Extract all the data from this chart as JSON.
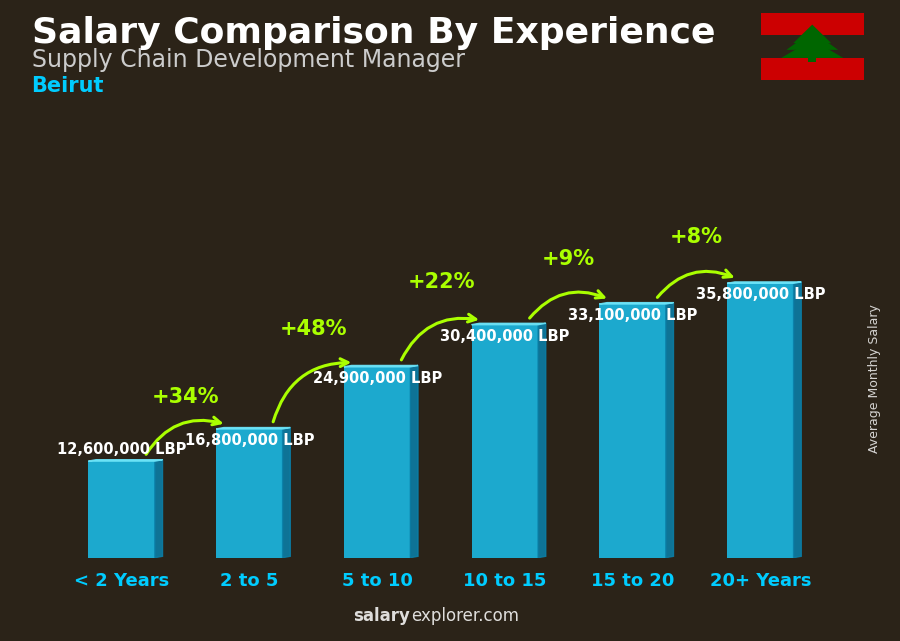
{
  "title": "Salary Comparison By Experience",
  "subtitle": "Supply Chain Development Manager",
  "city": "Beirut",
  "ylabel": "Average Monthly Salary",
  "categories": [
    "< 2 Years",
    "2 to 5",
    "5 to 10",
    "10 to 15",
    "15 to 20",
    "20+ Years"
  ],
  "values": [
    12600000,
    16800000,
    24900000,
    30400000,
    33100000,
    35800000
  ],
  "labels": [
    "12,600,000 LBP",
    "16,800,000 LBP",
    "24,900,000 LBP",
    "30,400,000 LBP",
    "33,100,000 LBP",
    "35,800,000 LBP"
  ],
  "pct_changes": [
    null,
    "+34%",
    "+48%",
    "+22%",
    "+9%",
    "+8%"
  ],
  "bar_front": "#1bbde8",
  "bar_side": "#0a7fa8",
  "bar_top": "#6ce4f8",
  "bar_alpha": 0.88,
  "bg_color": "#2b2318",
  "title_color": "#ffffff",
  "subtitle_color": "#cccccc",
  "city_color": "#00ccff",
  "label_color": "#ffffff",
  "pct_color": "#aaff00",
  "xlabel_color": "#00ccff",
  "watermark": "salaryexplorer.com",
  "watermark_bold": "salary",
  "title_fontsize": 26,
  "subtitle_fontsize": 17,
  "city_fontsize": 15,
  "label_fontsize": 10.5,
  "pct_fontsize": 15,
  "cat_fontsize": 13,
  "ylabel_fontsize": 9
}
